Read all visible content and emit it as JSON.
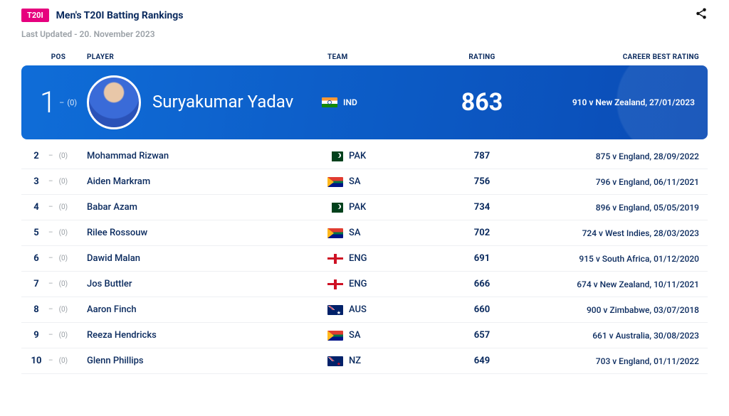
{
  "header": {
    "badge": "T20I",
    "title": "Men's T20I Batting Rankings",
    "updated": "Last Updated - 20. November 2023",
    "share_icon": "share"
  },
  "columns": {
    "pos": "POS",
    "player": "PLAYER",
    "team": "TEAM",
    "rating": "RATING",
    "cbr": "CAREER BEST RATING"
  },
  "delta_symbol": "–",
  "delta_value": "(0)",
  "featured": {
    "rank": "1",
    "name": "Suryakumar Yadav",
    "team_code": "IND",
    "flag_class": "flag-ind",
    "rating": "863",
    "cbr": "910 v New Zealand, 27/01/2023"
  },
  "rows": [
    {
      "rank": "2",
      "name": "Mohammad Rizwan",
      "team_code": "PAK",
      "flag_class": "flag-pak",
      "rating": "787",
      "cbr": "875 v England, 28/09/2022"
    },
    {
      "rank": "3",
      "name": "Aiden Markram",
      "team_code": "SA",
      "flag_class": "flag-sa",
      "rating": "756",
      "cbr": "796 v England, 06/11/2021"
    },
    {
      "rank": "4",
      "name": "Babar Azam",
      "team_code": "PAK",
      "flag_class": "flag-pak",
      "rating": "734",
      "cbr": "896 v England, 05/05/2019"
    },
    {
      "rank": "5",
      "name": "Rilee Rossouw",
      "team_code": "SA",
      "flag_class": "flag-sa",
      "rating": "702",
      "cbr": "724 v West Indies, 28/03/2023"
    },
    {
      "rank": "6",
      "name": "Dawid Malan",
      "team_code": "ENG",
      "flag_class": "flag-eng",
      "rating": "691",
      "cbr": "915 v South Africa, 01/12/2020"
    },
    {
      "rank": "7",
      "name": "Jos Buttler",
      "team_code": "ENG",
      "flag_class": "flag-eng",
      "rating": "666",
      "cbr": "674 v New Zealand, 10/11/2021"
    },
    {
      "rank": "8",
      "name": "Aaron Finch",
      "team_code": "AUS",
      "flag_class": "flag-aus",
      "rating": "660",
      "cbr": "900 v Zimbabwe, 03/07/2018"
    },
    {
      "rank": "9",
      "name": "Reeza Hendricks",
      "team_code": "SA",
      "flag_class": "flag-sa",
      "rating": "657",
      "cbr": "661 v Australia, 30/08/2023"
    },
    {
      "rank": "10",
      "name": "Glenn Phillips",
      "team_code": "NZ",
      "flag_class": "flag-nz",
      "rating": "649",
      "cbr": "703 v England, 01/11/2022"
    }
  ]
}
